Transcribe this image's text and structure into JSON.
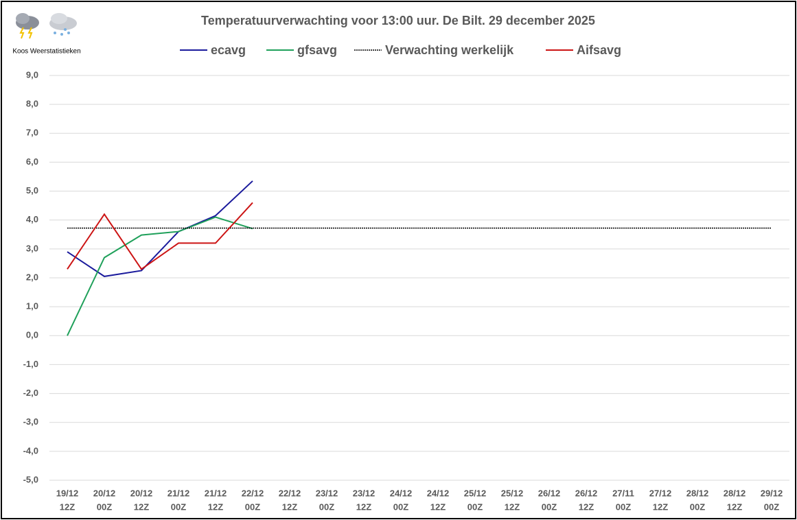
{
  "chart_data": {
    "type": "line",
    "title": "Temperatuurverwachting voor 13:00 uur. De Bilt. 29 december 2025",
    "brand": "Koos Weerstatistieken",
    "categories": [
      [
        "19/12",
        "12Z"
      ],
      [
        "20/12",
        "00Z"
      ],
      [
        "20/12",
        "12Z"
      ],
      [
        "21/12",
        "00Z"
      ],
      [
        "21/12",
        "12Z"
      ],
      [
        "22/12",
        "00Z"
      ],
      [
        "22/12",
        "12Z"
      ],
      [
        "23/12",
        "00Z"
      ],
      [
        "23/12",
        "12Z"
      ],
      [
        "24/12",
        "00Z"
      ],
      [
        "24/12",
        "12Z"
      ],
      [
        "25/12",
        "00Z"
      ],
      [
        "25/12",
        "12Z"
      ],
      [
        "26/12",
        "00Z"
      ],
      [
        "26/12",
        "12Z"
      ],
      [
        "27/11",
        "00Z"
      ],
      [
        "27/12",
        "12Z"
      ],
      [
        "28/12",
        "00Z"
      ],
      [
        "28/12",
        "12Z"
      ],
      [
        "29/12",
        "00Z"
      ]
    ],
    "series": [
      {
        "name": "ecavg",
        "color": "#1a1a9c",
        "values": [
          2.9,
          2.05,
          2.25,
          3.6,
          4.15,
          5.35,
          null,
          null,
          null,
          null,
          null,
          null,
          null,
          null,
          null,
          null,
          null,
          null,
          null,
          null
        ]
      },
      {
        "name": "gfsavg",
        "color": "#1fa05a",
        "values": [
          0.0,
          2.7,
          3.48,
          3.6,
          4.1,
          3.7,
          null,
          null,
          null,
          null,
          null,
          null,
          null,
          null,
          null,
          null,
          null,
          null,
          null,
          null
        ]
      },
      {
        "name": "Verwachting werkelijk",
        "color": "#000000",
        "dashed": true,
        "values": [
          3.72,
          3.72,
          3.72,
          3.72,
          3.72,
          3.72,
          3.72,
          3.72,
          3.72,
          3.72,
          3.72,
          3.72,
          3.72,
          3.72,
          3.72,
          3.72,
          3.72,
          3.72,
          3.72,
          3.72
        ]
      },
      {
        "name": "Aifsavg",
        "color": "#cc1414",
        "values": [
          2.3,
          4.2,
          2.3,
          3.2,
          3.2,
          4.6,
          null,
          null,
          null,
          null,
          null,
          null,
          null,
          null,
          null,
          null,
          null,
          null,
          null,
          null
        ]
      }
    ],
    "ylim": [
      -5,
      9
    ],
    "yticks": [
      {
        "value": -5,
        "label": "-5,0"
      },
      {
        "value": -4,
        "label": "-4,0"
      },
      {
        "value": -3,
        "label": "-3,0"
      },
      {
        "value": -2,
        "label": "-2,0"
      },
      {
        "value": -1,
        "label": "-1,0"
      },
      {
        "value": 0,
        "label": "0,0"
      },
      {
        "value": 1,
        "label": "1,0"
      },
      {
        "value": 2,
        "label": "2,0"
      },
      {
        "value": 3,
        "label": "3,0"
      },
      {
        "value": 4,
        "label": "4,0"
      },
      {
        "value": 5,
        "label": "5,0"
      },
      {
        "value": 6,
        "label": "6,0"
      },
      {
        "value": 7,
        "label": "7,0"
      },
      {
        "value": 8,
        "label": "8,0"
      },
      {
        "value": 9,
        "label": "9,0"
      }
    ],
    "grid": true,
    "legend": "top"
  }
}
